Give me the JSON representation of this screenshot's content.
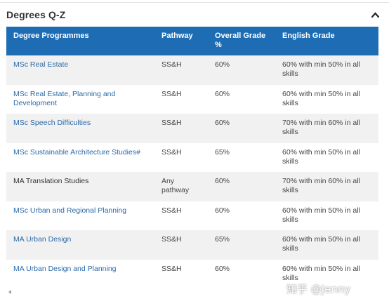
{
  "accordion": {
    "title": "Degrees Q-Z",
    "toggle_icon": "chevron-up-icon",
    "expanded": true
  },
  "table": {
    "headers": [
      "Degree Programmes",
      "Pathway",
      "Overall Grade %",
      "English Grade"
    ],
    "rows": [
      {
        "programme": "MSc Real Estate",
        "is_link": true,
        "pathway": "SS&H",
        "overall": "60%",
        "english": "60% with min 50% in all skills"
      },
      {
        "programme": "MSc Real Estate, Planning and Development",
        "is_link": true,
        "pathway": "SS&H",
        "overall": "60%",
        "english": "60% with min 50% in all skills"
      },
      {
        "programme": "MSc Speech Difficulties",
        "is_link": true,
        "pathway": "SS&H",
        "overall": "60%",
        "english": "70% with min 60% in all skills"
      },
      {
        "programme": "MSc Sustainable Architecture Studies#",
        "is_link": true,
        "pathway": "SS&H",
        "overall": "65%",
        "english": "60% with min 50% in all skills"
      },
      {
        "programme": "MA Translation Studies",
        "is_link": false,
        "pathway": "Any pathway",
        "overall": "60%",
        "english": "70% with min 60% in all skills"
      },
      {
        "programme": "MSc Urban and Regional Planning",
        "is_link": true,
        "pathway": "SS&H",
        "overall": "60%",
        "english": "60% with min 50% in all skills"
      },
      {
        "programme": "MA Urban Design",
        "is_link": true,
        "pathway": "SS&H",
        "overall": "65%",
        "english": "60% with min 50% in all skills"
      },
      {
        "programme": "MA Urban Design and Planning",
        "is_link": true,
        "pathway": "SS&H",
        "overall": "60%",
        "english": "60% with min 50% in all skills"
      }
    ]
  },
  "scrollbar": {
    "left_arrow_icon": "arrow-left-icon"
  },
  "footnote": "",
  "watermark": "知乎 @Jenny",
  "colors": {
    "header_bg": "#1e6db4",
    "link": "#2b6aa8",
    "row_alt": "#f1f1f1"
  }
}
